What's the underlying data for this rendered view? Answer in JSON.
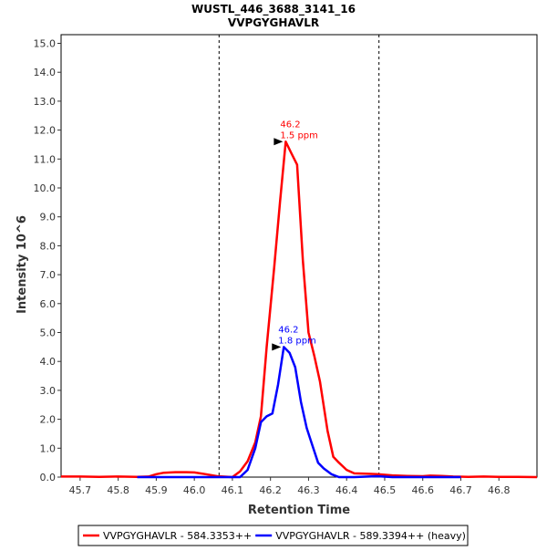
{
  "chart_data": {
    "type": "line",
    "title": "WUSTL_446_3688_3141_16",
    "subtitle": "VVPGYGHAVLR",
    "xlabel": "Retention Time",
    "ylabel": "Intensity 10^6",
    "xlim": [
      45.65,
      46.9
    ],
    "ylim": [
      0,
      15.3
    ],
    "x_ticks": [
      "45.7",
      "45.8",
      "45.9",
      "46.0",
      "46.1",
      "46.2",
      "46.3",
      "46.4",
      "46.5",
      "46.6",
      "46.7",
      "46.8"
    ],
    "y_ticks": [
      "0.0",
      "1.0",
      "2.0",
      "3.0",
      "4.0",
      "5.0",
      "6.0",
      "7.0",
      "8.0",
      "9.0",
      "10.0",
      "11.0",
      "12.0",
      "13.0",
      "14.0",
      "15.0"
    ],
    "grid": false,
    "legend_position": "bottom",
    "boundaries": [
      46.065,
      46.485
    ],
    "series": [
      {
        "name": "VVPGYGHAVLR - 584.3353++",
        "color": "#ff0000",
        "points": [
          [
            45.65,
            0.02
          ],
          [
            45.7,
            0.02
          ],
          [
            45.75,
            0.01
          ],
          [
            45.8,
            0.02
          ],
          [
            45.85,
            0.01
          ],
          [
            45.88,
            0.02
          ],
          [
            45.9,
            0.1
          ],
          [
            45.92,
            0.15
          ],
          [
            45.95,
            0.17
          ],
          [
            45.98,
            0.17
          ],
          [
            46.0,
            0.16
          ],
          [
            46.03,
            0.1
          ],
          [
            46.06,
            0.03
          ],
          [
            46.1,
            0.0
          ],
          [
            46.12,
            0.2
          ],
          [
            46.14,
            0.55
          ],
          [
            46.16,
            1.2
          ],
          [
            46.175,
            2.1
          ],
          [
            46.19,
            4.5
          ],
          [
            46.21,
            7.3
          ],
          [
            46.225,
            9.5
          ],
          [
            46.24,
            11.6
          ],
          [
            46.255,
            11.2
          ],
          [
            46.27,
            10.8
          ],
          [
            46.285,
            7.5
          ],
          [
            46.3,
            5.0
          ],
          [
            46.315,
            4.2
          ],
          [
            46.33,
            3.3
          ],
          [
            46.35,
            1.6
          ],
          [
            46.365,
            0.7
          ],
          [
            46.38,
            0.5
          ],
          [
            46.4,
            0.25
          ],
          [
            46.42,
            0.13
          ],
          [
            46.45,
            0.12
          ],
          [
            46.48,
            0.1
          ],
          [
            46.52,
            0.06
          ],
          [
            46.56,
            0.04
          ],
          [
            46.6,
            0.03
          ],
          [
            46.62,
            0.05
          ],
          [
            46.65,
            0.04
          ],
          [
            46.68,
            0.02
          ],
          [
            46.72,
            0.01
          ],
          [
            46.76,
            0.02
          ],
          [
            46.8,
            0.01
          ],
          [
            46.85,
            0.01
          ],
          [
            46.9,
            0.0
          ]
        ],
        "annotation": {
          "x": 46.24,
          "y": 11.6,
          "line1": "46.2",
          "line2": "1.5 ppm"
        }
      },
      {
        "name": "VVPGYGHAVLR - 589.3394++ (heavy)",
        "color": "#0000ff",
        "points": [
          [
            45.85,
            0.0
          ],
          [
            46.0,
            0.0
          ],
          [
            46.06,
            0.0
          ],
          [
            46.12,
            0.0
          ],
          [
            46.14,
            0.25
          ],
          [
            46.16,
            1.0
          ],
          [
            46.175,
            1.9
          ],
          [
            46.19,
            2.1
          ],
          [
            46.205,
            2.2
          ],
          [
            46.22,
            3.2
          ],
          [
            46.235,
            4.5
          ],
          [
            46.25,
            4.3
          ],
          [
            46.265,
            3.8
          ],
          [
            46.28,
            2.6
          ],
          [
            46.295,
            1.7
          ],
          [
            46.31,
            1.1
          ],
          [
            46.325,
            0.5
          ],
          [
            46.34,
            0.3
          ],
          [
            46.36,
            0.1
          ],
          [
            46.38,
            0.0
          ],
          [
            46.42,
            0.0
          ],
          [
            46.48,
            0.03
          ],
          [
            46.52,
            0.0
          ],
          [
            46.6,
            0.0
          ],
          [
            46.7,
            0.0
          ]
        ],
        "annotation": {
          "x": 46.235,
          "y": 4.5,
          "line1": "46.2",
          "line2": "1.8 ppm"
        }
      }
    ]
  }
}
